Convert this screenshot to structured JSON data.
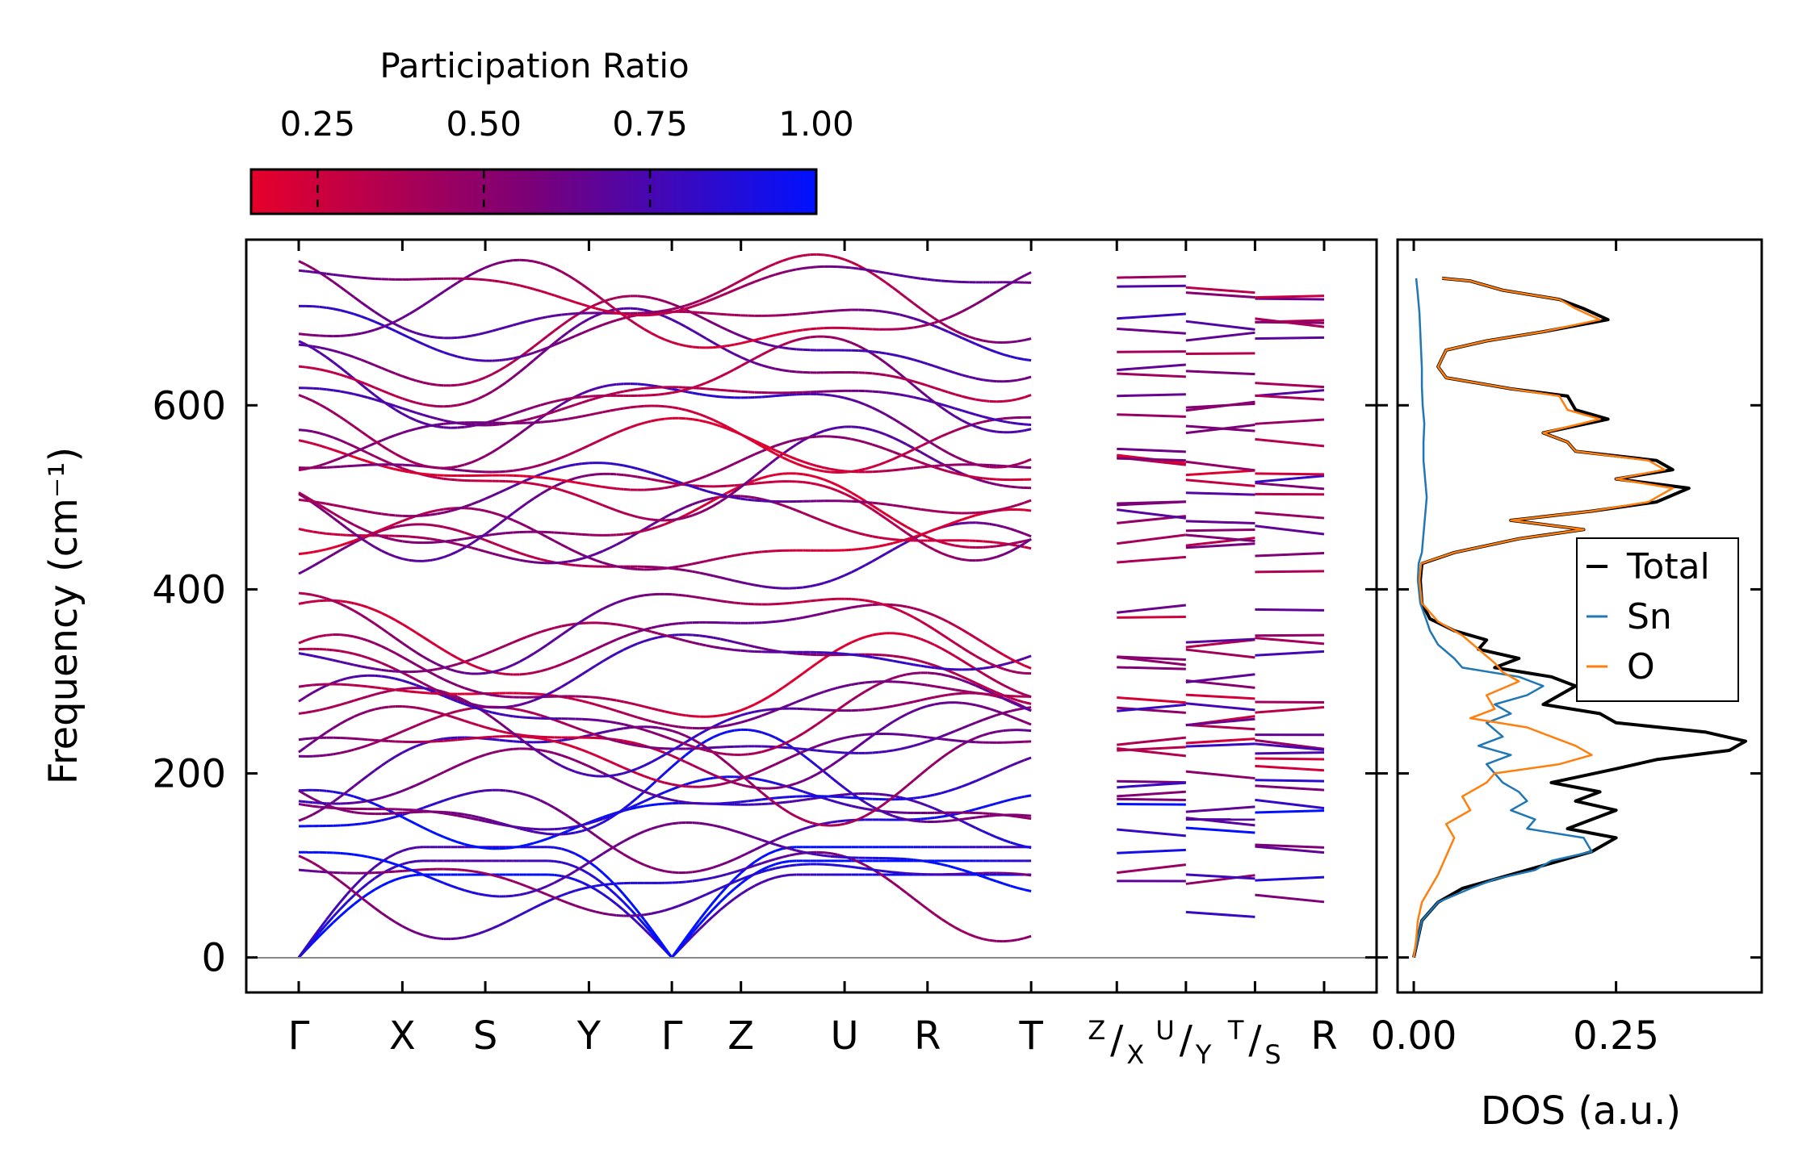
{
  "colorbar": {
    "title": "Participation Ratio",
    "range": [
      0.15,
      1.0
    ],
    "ticks": [
      "0.25",
      "0.50",
      "0.75",
      "1.00"
    ],
    "tick_values": [
      0.25,
      0.5,
      0.75,
      1.0
    ],
    "color_low": "#e6002a",
    "color_mid": "#7a0079",
    "color_high": "#0011ff"
  },
  "chart_data": [
    {
      "type": "line",
      "name": "phonon-band-structure",
      "ylabel": "Frequency (cm⁻¹)",
      "ylim": [
        -38,
        780
      ],
      "yticks": [
        0,
        200,
        400,
        600
      ],
      "ytick_labels": [
        "0",
        "200",
        "400",
        "600"
      ],
      "kpath_labels": [
        "Γ",
        "X",
        "S",
        "Y",
        "Γ",
        "Z",
        "U",
        "R",
        "T",
        "Z|X",
        "U|Y",
        "T|S",
        "R"
      ],
      "split_labels": [
        {
          "sup": "Z",
          "sub": "X"
        },
        {
          "sup": "U",
          "sub": "Y"
        },
        {
          "sup": "T",
          "sub": "S"
        }
      ],
      "kpath_positions": [
        0,
        0.75,
        1.35,
        2.1,
        2.7,
        3.2,
        3.95,
        4.55,
        5.3,
        5.92,
        6.42,
        6.92,
        7.42
      ],
      "segments": [
        [
          0,
          8
        ],
        [
          9,
          9
        ],
        [
          10,
          10
        ],
        [
          11,
          11
        ]
      ],
      "zero_line": 0,
      "acoustic_optic_gap": [
        370,
        430
      ],
      "gamma_band_frequencies": [
        0,
        0,
        0,
        72,
        80,
        108,
        140,
        155,
        165,
        178,
        188,
        212,
        222,
        232,
        240,
        252,
        262,
        278,
        298,
        318,
        336,
        352,
        365,
        432,
        450,
        462,
        478,
        492,
        505,
        522,
        532,
        548,
        570,
        590,
        605,
        620,
        648,
        668,
        685,
        700,
        712,
        728
      ],
      "band_count": 42
    },
    {
      "type": "line",
      "name": "density-of-states",
      "xlabel": "DOS (a.u.)",
      "xlim": [
        -0.02,
        0.43
      ],
      "xticks": [
        0.0,
        0.25
      ],
      "xtick_labels": [
        "0.00",
        "0.25"
      ],
      "ylim": [
        -38,
        780
      ],
      "series": [
        {
          "name": "Total",
          "color": "#000000",
          "points": [
            [
              0.0,
              0
            ],
            [
              0.005,
              20
            ],
            [
              0.01,
              40
            ],
            [
              0.03,
              60
            ],
            [
              0.06,
              75
            ],
            [
              0.1,
              85
            ],
            [
              0.14,
              95
            ],
            [
              0.18,
              105
            ],
            [
              0.22,
              115
            ],
            [
              0.25,
              130
            ],
            [
              0.19,
              140
            ],
            [
              0.22,
              150
            ],
            [
              0.25,
              160
            ],
            [
              0.2,
              170
            ],
            [
              0.23,
              180
            ],
            [
              0.17,
              190
            ],
            [
              0.25,
              205
            ],
            [
              0.3,
              215
            ],
            [
              0.39,
              225
            ],
            [
              0.41,
              235
            ],
            [
              0.36,
              245
            ],
            [
              0.25,
              255
            ],
            [
              0.23,
              265
            ],
            [
              0.16,
              275
            ],
            [
              0.18,
              285
            ],
            [
              0.2,
              295
            ],
            [
              0.17,
              305
            ],
            [
              0.1,
              315
            ],
            [
              0.13,
              325
            ],
            [
              0.08,
              335
            ],
            [
              0.09,
              345
            ],
            [
              0.05,
              355
            ],
            [
              0.02,
              368
            ],
            [
              0.01,
              385
            ],
            [
              0.008,
              410
            ],
            [
              0.01,
              428
            ],
            [
              0.05,
              440
            ],
            [
              0.13,
              455
            ],
            [
              0.21,
              465
            ],
            [
              0.12,
              475
            ],
            [
              0.22,
              485
            ],
            [
              0.3,
              495
            ],
            [
              0.34,
              510
            ],
            [
              0.25,
              520
            ],
            [
              0.32,
              530
            ],
            [
              0.3,
              540
            ],
            [
              0.2,
              550
            ],
            [
              0.19,
              560
            ],
            [
              0.16,
              570
            ],
            [
              0.24,
              585
            ],
            [
              0.2,
              595
            ],
            [
              0.19,
              610
            ],
            [
              0.12,
              618
            ],
            [
              0.04,
              630
            ],
            [
              0.03,
              642
            ],
            [
              0.04,
              660
            ],
            [
              0.09,
              670
            ],
            [
              0.16,
              680
            ],
            [
              0.24,
              693
            ],
            [
              0.21,
              705
            ],
            [
              0.18,
              715
            ],
            [
              0.11,
              725
            ],
            [
              0.07,
              735
            ],
            [
              0.035,
              738
            ]
          ]
        },
        {
          "name": "Sn",
          "color": "#1f77b4",
          "points": [
            [
              0.0,
              0
            ],
            [
              0.005,
              20
            ],
            [
              0.01,
              40
            ],
            [
              0.03,
              60
            ],
            [
              0.07,
              75
            ],
            [
              0.1,
              85
            ],
            [
              0.15,
              95
            ],
            [
              0.17,
              105
            ],
            [
              0.22,
              115
            ],
            [
              0.21,
              130
            ],
            [
              0.14,
              140
            ],
            [
              0.15,
              150
            ],
            [
              0.12,
              160
            ],
            [
              0.14,
              170
            ],
            [
              0.13,
              180
            ],
            [
              0.11,
              190
            ],
            [
              0.1,
              200
            ],
            [
              0.09,
              210
            ],
            [
              0.12,
              220
            ],
            [
              0.08,
              230
            ],
            [
              0.11,
              240
            ],
            [
              0.09,
              255
            ],
            [
              0.12,
              265
            ],
            [
              0.1,
              275
            ],
            [
              0.14,
              285
            ],
            [
              0.16,
              295
            ],
            [
              0.13,
              305
            ],
            [
              0.06,
              315
            ],
            [
              0.05,
              325
            ],
            [
              0.03,
              340
            ],
            [
              0.02,
              355
            ],
            [
              0.015,
              368
            ],
            [
              0.008,
              385
            ],
            [
              0.005,
              410
            ],
            [
              0.006,
              428
            ],
            [
              0.01,
              440
            ],
            [
              0.012,
              460
            ],
            [
              0.014,
              480
            ],
            [
              0.016,
              500
            ],
            [
              0.014,
              520
            ],
            [
              0.012,
              540
            ],
            [
              0.012,
              560
            ],
            [
              0.013,
              580
            ],
            [
              0.011,
              600
            ],
            [
              0.01,
              620
            ],
            [
              0.01,
              640
            ],
            [
              0.009,
              660
            ],
            [
              0.008,
              680
            ],
            [
              0.007,
              700
            ],
            [
              0.005,
              720
            ],
            [
              0.003,
              738
            ]
          ]
        },
        {
          "name": "O",
          "color": "#ff7f0e",
          "points": [
            [
              0.0,
              0
            ],
            [
              0.003,
              20
            ],
            [
              0.005,
              40
            ],
            [
              0.01,
              60
            ],
            [
              0.02,
              75
            ],
            [
              0.03,
              90
            ],
            [
              0.04,
              110
            ],
            [
              0.05,
              130
            ],
            [
              0.04,
              145
            ],
            [
              0.07,
              160
            ],
            [
              0.06,
              175
            ],
            [
              0.09,
              190
            ],
            [
              0.1,
              200
            ],
            [
              0.18,
              210
            ],
            [
              0.22,
              220
            ],
            [
              0.2,
              230
            ],
            [
              0.17,
              240
            ],
            [
              0.14,
              250
            ],
            [
              0.07,
              260
            ],
            [
              0.1,
              270
            ],
            [
              0.09,
              285
            ],
            [
              0.13,
              300
            ],
            [
              0.11,
              310
            ],
            [
              0.1,
              320
            ],
            [
              0.08,
              335
            ],
            [
              0.06,
              350
            ],
            [
              0.03,
              365
            ],
            [
              0.01,
              385
            ],
            [
              0.007,
              410
            ],
            [
              0.009,
              428
            ],
            [
              0.05,
              440
            ],
            [
              0.13,
              455
            ],
            [
              0.21,
              465
            ],
            [
              0.12,
              475
            ],
            [
              0.22,
              485
            ],
            [
              0.29,
              495
            ],
            [
              0.32,
              510
            ],
            [
              0.25,
              520
            ],
            [
              0.31,
              530
            ],
            [
              0.29,
              540
            ],
            [
              0.2,
              550
            ],
            [
              0.19,
              560
            ],
            [
              0.16,
              570
            ],
            [
              0.23,
              585
            ],
            [
              0.19,
              595
            ],
            [
              0.18,
              610
            ],
            [
              0.12,
              618
            ],
            [
              0.04,
              630
            ],
            [
              0.03,
              642
            ],
            [
              0.04,
              660
            ],
            [
              0.09,
              670
            ],
            [
              0.16,
              680
            ],
            [
              0.23,
              693
            ],
            [
              0.2,
              705
            ],
            [
              0.18,
              715
            ],
            [
              0.11,
              725
            ],
            [
              0.07,
              735
            ],
            [
              0.035,
              738
            ]
          ]
        }
      ],
      "legend": {
        "position": "center-right",
        "entries": [
          "Total",
          "Sn",
          "O"
        ]
      }
    }
  ]
}
